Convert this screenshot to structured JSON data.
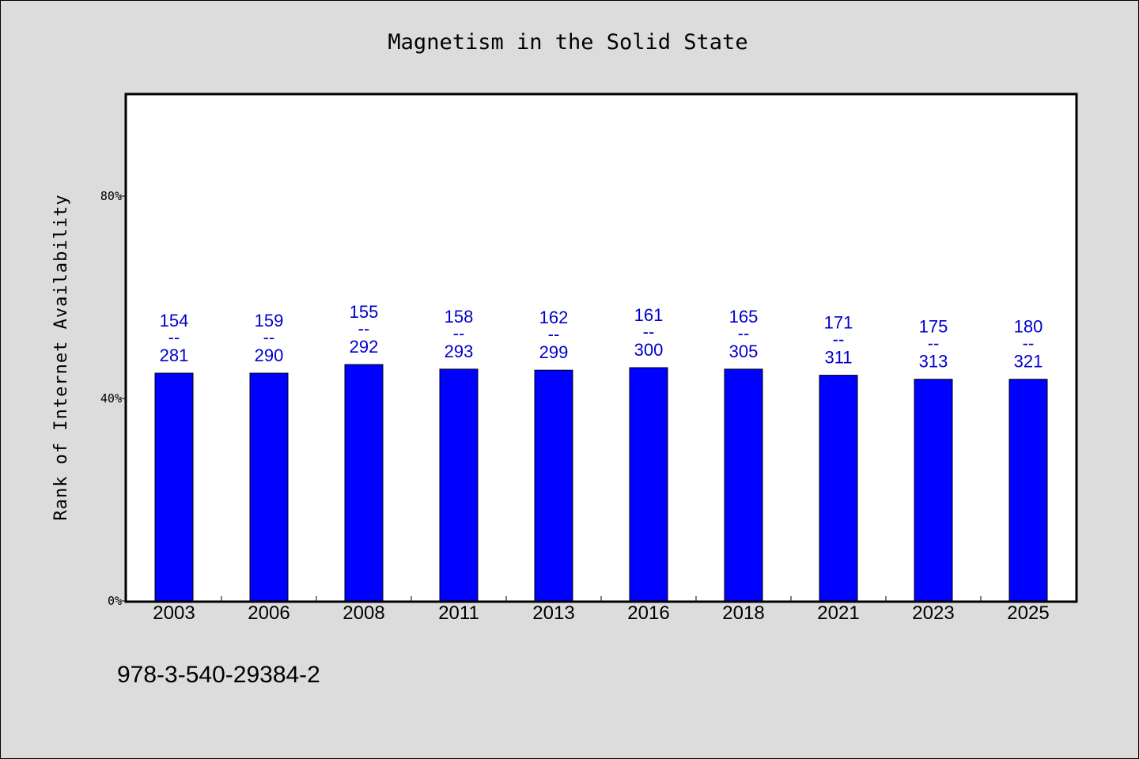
{
  "chart_data": {
    "type": "bar",
    "title": "Magnetism in the Solid State",
    "xlabel": "",
    "ylabel": "Rank of Internet Availability",
    "categories": [
      "2003",
      "2006",
      "2008",
      "2011",
      "2013",
      "2016",
      "2018",
      "2021",
      "2023",
      "2025"
    ],
    "values": [
      45.0,
      45.0,
      46.7,
      45.8,
      45.6,
      46.1,
      45.8,
      44.6,
      43.8,
      43.8
    ],
    "data_labels": [
      {
        "rank": "154",
        "separator": "--",
        "total": "281"
      },
      {
        "rank": "159",
        "separator": "--",
        "total": "290"
      },
      {
        "rank": "155",
        "separator": "--",
        "total": "292"
      },
      {
        "rank": "158",
        "separator": "--",
        "total": "293"
      },
      {
        "rank": "162",
        "separator": "--",
        "total": "299"
      },
      {
        "rank": "161",
        "separator": "--",
        "total": "300"
      },
      {
        "rank": "165",
        "separator": "--",
        "total": "305"
      },
      {
        "rank": "171",
        "separator": "--",
        "total": "311"
      },
      {
        "rank": "175",
        "separator": "--",
        "total": "313"
      },
      {
        "rank": "180",
        "separator": "--",
        "total": "321"
      }
    ],
    "yticks": [
      0,
      40,
      80
    ],
    "ytick_labels": [
      "0%",
      "40%",
      "80%"
    ],
    "ylim": [
      0,
      100
    ],
    "grid": false,
    "legend": "none",
    "colors": {
      "bar": "#0000ff",
      "bar_outline": "#000000",
      "data_label": "#0000cc",
      "background": "#dcdcdc",
      "plot_background": "#ffffff"
    }
  },
  "footnote": "978-3-540-29384-2"
}
